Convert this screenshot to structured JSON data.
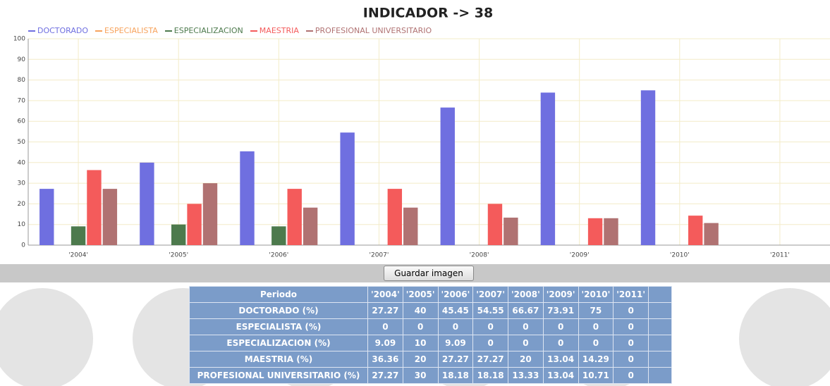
{
  "chart_data": {
    "type": "bar",
    "title": "INDICADOR -> 38",
    "categories": [
      "'2004'",
      "'2005'",
      "'2006'",
      "'2007'",
      "'2008'",
      "'2009'",
      "'2010'",
      "'2011'"
    ],
    "series": [
      {
        "name": "DOCTORADO",
        "color": "#6f6fe0",
        "values": [
          27.27,
          40,
          45.45,
          54.55,
          66.67,
          73.91,
          75,
          0
        ]
      },
      {
        "name": "ESPECIALISTA",
        "color": "#f7a35c",
        "values": [
          0,
          0,
          0,
          0,
          0,
          0,
          0,
          0
        ]
      },
      {
        "name": "ESPECIALIZACION",
        "color": "#4d7a4d",
        "values": [
          9.09,
          10,
          9.09,
          0,
          0,
          0,
          0,
          0
        ]
      },
      {
        "name": "MAESTRIA",
        "color": "#f45b5b",
        "values": [
          36.36,
          20,
          27.27,
          27.27,
          20,
          13.04,
          14.29,
          0
        ]
      },
      {
        "name": "PROFESIONAL UNIVERSITARIO",
        "color": "#b07272",
        "values": [
          27.27,
          30,
          18.18,
          18.18,
          13.33,
          13.04,
          10.71,
          0
        ]
      }
    ],
    "ylim": [
      0,
      100
    ],
    "yticks": [
      0,
      10,
      20,
      30,
      40,
      50,
      60,
      70,
      80,
      90,
      100
    ],
    "grid": true
  },
  "button": "Guardar imagen",
  "table": {
    "header": [
      "Periodo",
      "'2004'",
      "'2005'",
      "'2006'",
      "'2007'",
      "'2008'",
      "'2009'",
      "'2010'",
      "'2011'"
    ],
    "rows": [
      [
        "DOCTORADO (%)",
        "27.27",
        "40",
        "45.45",
        "54.55",
        "66.67",
        "73.91",
        "75",
        "0"
      ],
      [
        "ESPECIALISTA (%)",
        "0",
        "0",
        "0",
        "0",
        "0",
        "0",
        "0",
        "0"
      ],
      [
        "ESPECIALIZACION (%)",
        "9.09",
        "10",
        "9.09",
        "0",
        "0",
        "0",
        "0",
        "0"
      ],
      [
        "MAESTRIA (%)",
        "36.36",
        "20",
        "27.27",
        "27.27",
        "20",
        "13.04",
        "14.29",
        "0"
      ],
      [
        "PROFESIONAL UNIVERSITARIO (%)",
        "27.27",
        "30",
        "18.18",
        "18.18",
        "13.33",
        "13.04",
        "10.71",
        "0"
      ]
    ]
  }
}
